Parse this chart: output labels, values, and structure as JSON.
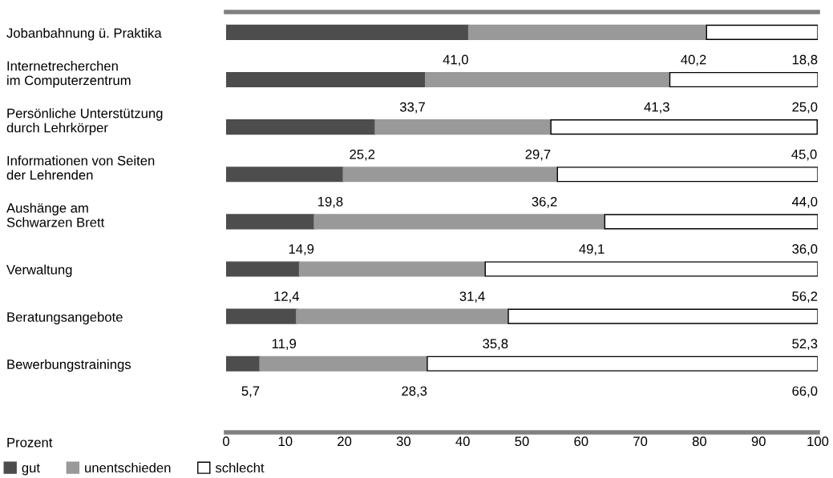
{
  "chart_data": {
    "type": "bar",
    "orientation": "horizontal",
    "stacked": true,
    "xlabel": "Prozent",
    "categories": [
      "Jobanbahnung ü. Praktika",
      "Internetrecherchen\nim Computerzentrum",
      "Persönliche Unterstützung\ndurch Lehrkörper",
      "Informationen von Seiten\nder Lehrenden",
      "Aushänge am\nSchwarzen Brett",
      "Verwaltung",
      "Beratungsangebote",
      "Bewerbungstrainings"
    ],
    "series": [
      {
        "name": "gut",
        "color": "#4d4d4d",
        "values": [
          41.0,
          33.7,
          25.2,
          19.8,
          14.9,
          12.4,
          11.9,
          5.7
        ]
      },
      {
        "name": "unentschieden",
        "color": "#999999",
        "values": [
          40.2,
          41.3,
          29.7,
          36.2,
          49.1,
          31.4,
          35.8,
          28.3
        ]
      },
      {
        "name": "schlecht",
        "color": "#ffffff",
        "values": [
          18.8,
          25.0,
          45.0,
          44.0,
          36.0,
          56.2,
          52.3,
          66.0
        ]
      }
    ],
    "value_labels": [
      [
        "41,0",
        "33,7",
        "25,2",
        "19,8",
        "14,9",
        "12,4",
        "11,9",
        "5,7"
      ],
      [
        "40,2",
        "41,3",
        "29,7",
        "36,2",
        "49,1",
        "31,4",
        "35,8",
        "28,3"
      ],
      [
        "18,8",
        "25,0",
        "45,0",
        "44,0",
        "36,0",
        "56,2",
        "52,3",
        "66,0"
      ]
    ],
    "xlim": [
      0,
      100
    ],
    "xticks": [
      0,
      10,
      20,
      30,
      40,
      50,
      60,
      70,
      80,
      90,
      100
    ],
    "grid": false,
    "legend": "bottom"
  }
}
